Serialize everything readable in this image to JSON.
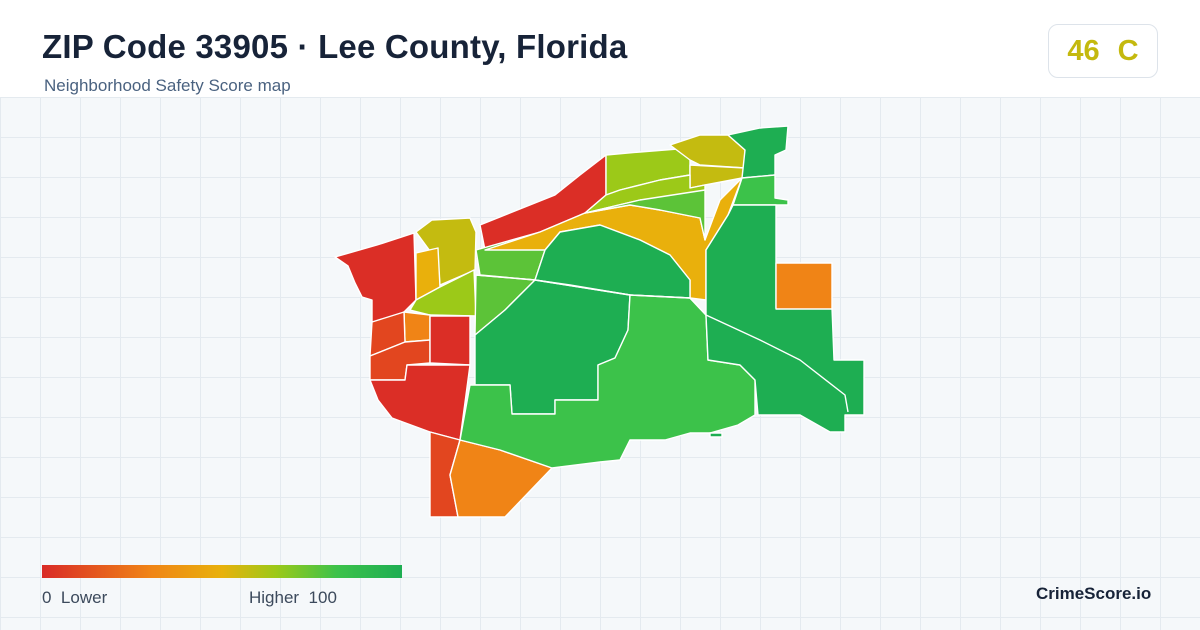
{
  "header": {
    "title": "ZIP Code 33905 · Lee County, Florida",
    "subtitle": "Neighborhood Safety Score map"
  },
  "score": {
    "value": "46",
    "grade": "C",
    "color": "#c4b90e"
  },
  "legend": {
    "min_value": "0",
    "min_label": "Lower",
    "max_label": "Higher",
    "max_value": "100",
    "colors": [
      "#d92b27",
      "#f08416",
      "#e8b10c",
      "#9cc918",
      "#3cc24a",
      "#1eae52"
    ]
  },
  "brand": "CrimeScore.io",
  "map": {
    "colors": {
      "red": "#db2e26",
      "red_orange": "#e2461f",
      "orange": "#f08416",
      "amber": "#e9b00c",
      "olive": "#c4bb10",
      "yellow_green": "#9cc918",
      "light_green": "#5cc338",
      "green": "#3cc24a",
      "dark_green": "#1eae52"
    }
  }
}
